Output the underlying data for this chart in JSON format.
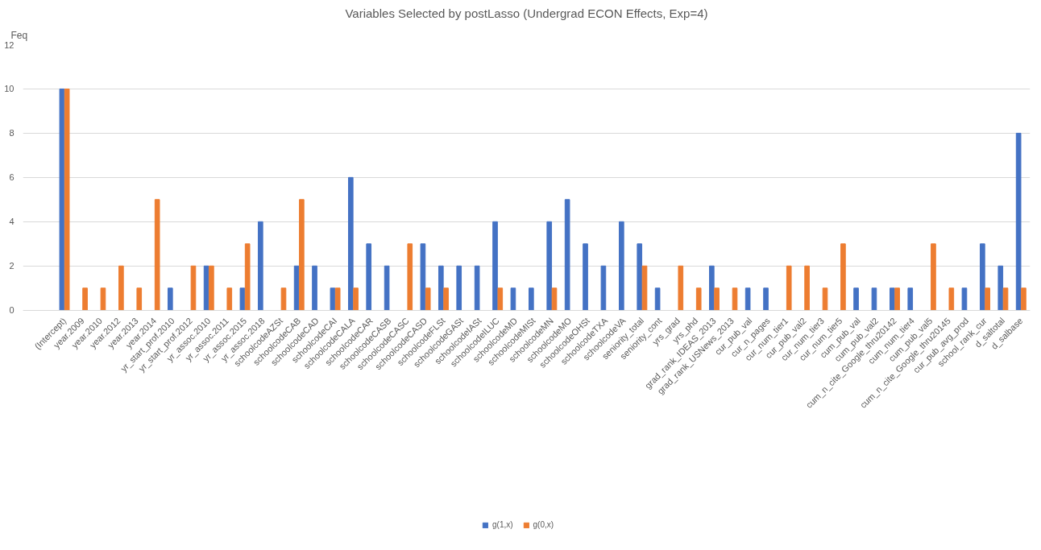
{
  "chart_data": {
    "type": "bar",
    "title": "Variables Selected by postLasso (Undergrad ECON Effects, Exp=4)",
    "ylabel": "Feq",
    "categories": [
      "(Intercept)",
      "year.2009",
      "year.2010",
      "year.2012",
      "year.2013",
      "year.2014",
      "yr_start_prof.2010",
      "yr_start_prof.2012",
      "yr_assoc.2010",
      "yr_assoc.2011",
      "yr_assoc.2015",
      "yr_assoc.2018",
      "schoolcodeAZSt",
      "schoolcodeCAB",
      "schoolcodeCAD",
      "schoolcodeCAI",
      "schoolcodeCALA",
      "schoolcodeCAR",
      "schoolcodeCASB",
      "schoolcodeCASC",
      "schoolcodeCASD",
      "schoolcodeFLSt",
      "schoolcodeGASt",
      "schoolcodeIASt",
      "schoolcodeILUC",
      "schoolcodeMD",
      "schoolcodeMISt",
      "schoolcodeMN",
      "schoolcodeMO",
      "schoolcodeOHSt",
      "schoolcodeTXA",
      "schoolcodeVA",
      "seniority_total",
      "seniority_cont",
      "yrs_grad",
      "yrs_phd",
      "grad_rank_IDEAS_2013",
      "grad_rank_USNews_2013",
      "cur_pub_val",
      "cur_n_pages",
      "cur_num_tier1",
      "cur_pub_val2",
      "cur_num_tier3",
      "cur_num_tier5",
      "cum_pub_val",
      "cum_pub_val2",
      "cum_n_cite_Google_thru20142",
      "cum_num_tier4",
      "cum_pub_val5",
      "cum_n_cite_Google_thru20145",
      "cur_pub_avg_prod",
      "school_rank_cur",
      "d_saltotal",
      "d_salbase"
    ],
    "series": [
      {
        "name": "g(1,x)",
        "color": "#4472c4",
        "values": [
          10,
          null,
          null,
          null,
          null,
          null,
          1,
          null,
          2,
          null,
          1,
          4,
          null,
          2,
          2,
          1,
          6,
          3,
          2,
          null,
          3,
          2,
          2,
          2,
          4,
          1,
          1,
          4,
          5,
          3,
          2,
          4,
          3,
          1,
          null,
          null,
          2,
          null,
          1,
          1,
          null,
          null,
          null,
          null,
          1,
          1,
          1,
          1,
          null,
          null,
          1,
          3,
          2,
          8
        ]
      },
      {
        "name": "g(0,x)",
        "color": "#ed7d31",
        "values": [
          10,
          1,
          1,
          2,
          1,
          5,
          null,
          2,
          2,
          1,
          3,
          null,
          1,
          5,
          null,
          1,
          1,
          null,
          null,
          3,
          1,
          1,
          null,
          null,
          1,
          null,
          null,
          1,
          null,
          null,
          null,
          null,
          2,
          null,
          2,
          1,
          1,
          1,
          null,
          null,
          2,
          2,
          1,
          3,
          null,
          null,
          1,
          null,
          3,
          1,
          null,
          1,
          1,
          1
        ]
      }
    ],
    "ylim": [
      0,
      12
    ],
    "yticks": [
      0,
      2,
      4,
      6,
      8,
      10,
      12
    ],
    "grid": "y",
    "legend": "bottom"
  }
}
